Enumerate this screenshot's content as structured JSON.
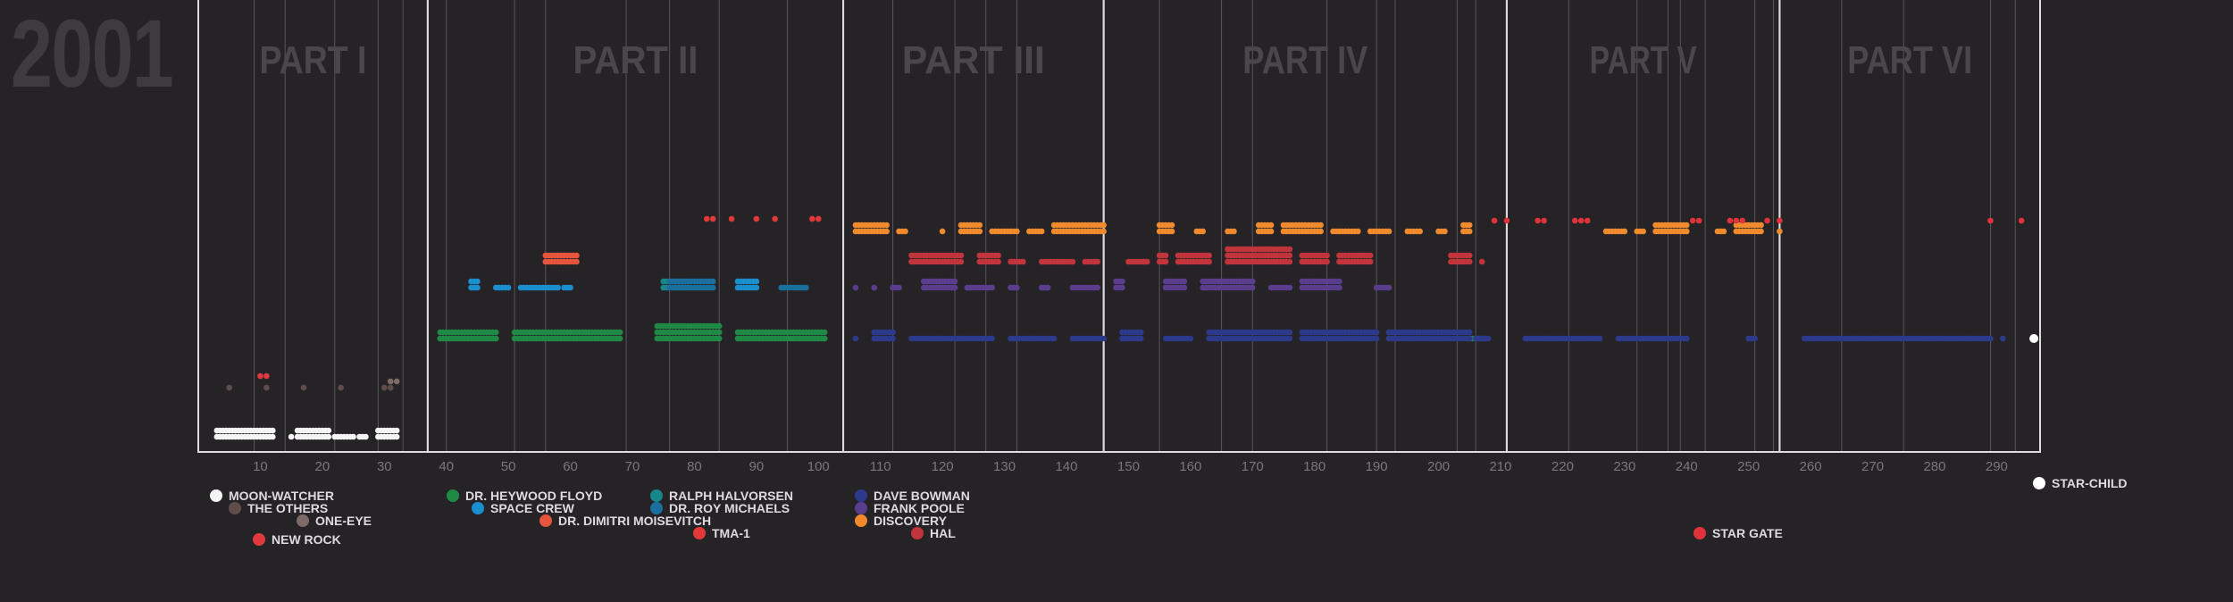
{
  "year_title": "2001",
  "parts": [
    {
      "label": "PART I",
      "start": 0,
      "end": 37
    },
    {
      "label": "PART II",
      "start": 37,
      "end": 104
    },
    {
      "label": "PART III",
      "start": 104,
      "end": 146
    },
    {
      "label": "PART IV",
      "start": 146,
      "end": 211
    },
    {
      "label": "PART V",
      "start": 211,
      "end": 255
    },
    {
      "label": "PART VI",
      "start": 255,
      "end": 297
    }
  ],
  "colors": {
    "moon_watcher": "#f4f4f4",
    "the_others": "#5e4d4a",
    "one_eye": "#7d6b68",
    "new_rock": "#e03a40",
    "heywood_floyd": "#1e8a45",
    "space_crew": "#1a8fd0",
    "dimitri_moisevitch": "#e6553e",
    "ralph_halvorsen": "#17878a",
    "roy_michaels": "#1a6f9e",
    "tma1": "#e23838",
    "dave_bowman": "#2d3a8c",
    "frank_poole": "#5b3d8e",
    "discovery": "#f08a2c",
    "hal": "#c2343c",
    "star_gate": "#e0323a",
    "star_child": "#ffffff"
  },
  "legend": [
    {
      "key": "moon_watcher",
      "label": "MOON-WATCHER"
    },
    {
      "key": "the_others",
      "label": "THE OTHERS"
    },
    {
      "key": "one_eye",
      "label": "ONE-EYE"
    },
    {
      "key": "new_rock",
      "label": "NEW ROCK"
    },
    {
      "key": "heywood_floyd",
      "label": "DR. HEYWOOD FLOYD"
    },
    {
      "key": "space_crew",
      "label": "SPACE CREW"
    },
    {
      "key": "dimitri_moisevitch",
      "label": "DR. DIMITRI MOISEVITCH"
    },
    {
      "key": "tma1",
      "label": "TMA-1"
    },
    {
      "key": "ralph_halvorsen",
      "label": "RALPH HALVORSEN"
    },
    {
      "key": "roy_michaels",
      "label": "DR. ROY MICHAELS"
    },
    {
      "key": "dave_bowman",
      "label": "DAVE BOWMAN"
    },
    {
      "key": "frank_poole",
      "label": "FRANK POOLE"
    },
    {
      "key": "discovery",
      "label": "DISCOVERY"
    },
    {
      "key": "hal",
      "label": "HAL"
    },
    {
      "key": "star_gate",
      "label": "STAR GATE"
    },
    {
      "key": "star_child",
      "label": "STAR-CHILD"
    }
  ],
  "chart_data": {
    "type": "scatter",
    "title": "2001",
    "x_ticks": [
      10,
      20,
      30,
      40,
      50,
      60,
      70,
      80,
      90,
      100,
      110,
      120,
      130,
      140,
      150,
      160,
      170,
      180,
      190,
      200,
      210,
      220,
      230,
      240,
      250,
      260,
      270,
      280,
      290
    ],
    "xlim": [
      0,
      297
    ],
    "chapter_boundaries": [
      0,
      9,
      14,
      22,
      29,
      33,
      37,
      40,
      51,
      56,
      69,
      76,
      84,
      95,
      104,
      112,
      122,
      127,
      132,
      146,
      155,
      165,
      170,
      182,
      190,
      193,
      203,
      206,
      211,
      221,
      232,
      237,
      239,
      243,
      251,
      254,
      265,
      275,
      289,
      293
    ],
    "series": [
      {
        "key": "moon_watcher",
        "name": "MOON-WATCHER",
        "segments": [
          [
            3,
            12,
            2
          ],
          [
            15,
            15,
            1
          ],
          [
            16,
            21,
            2
          ],
          [
            22,
            25,
            1
          ],
          [
            26,
            27,
            1
          ],
          [
            29,
            32,
            2
          ]
        ]
      },
      {
        "key": "the_others",
        "name": "THE OTHERS",
        "points": [
          5,
          11,
          17,
          23,
          30,
          31
        ]
      },
      {
        "key": "one_eye",
        "name": "ONE-EYE",
        "points": [
          31,
          32
        ]
      },
      {
        "key": "new_rock",
        "name": "NEW ROCK",
        "points": [
          10,
          11
        ]
      },
      {
        "key": "heywood_floyd",
        "name": "DR. HEYWOOD FLOYD",
        "segments": [
          [
            39,
            48,
            2
          ],
          [
            51,
            68,
            2
          ],
          [
            74,
            84,
            3
          ],
          [
            87,
            101,
            2
          ],
          [
            205,
            207,
            1
          ]
        ]
      },
      {
        "key": "space_crew",
        "name": "SPACE CREW",
        "segments": [
          [
            44,
            45,
            2
          ],
          [
            48,
            50,
            1
          ],
          [
            52,
            58,
            1
          ],
          [
            59,
            60,
            1
          ],
          [
            87,
            90,
            2
          ]
        ]
      },
      {
        "key": "dimitri_moisevitch",
        "name": "DR. DIMITRI MOISEVITCH",
        "segments": [
          [
            56,
            61,
            2
          ]
        ]
      },
      {
        "key": "ralph_halvorsen",
        "name": "RALPH HALVORSEN",
        "segments": [
          [
            75,
            79,
            2
          ]
        ]
      },
      {
        "key": "roy_michaels",
        "name": "DR. ROY MICHAELS",
        "segments": [
          [
            76,
            83,
            2
          ],
          [
            94,
            98,
            1
          ]
        ]
      },
      {
        "key": "tma1",
        "name": "TMA-1",
        "points": [
          82,
          83,
          86,
          90,
          93,
          99,
          100
        ]
      },
      {
        "key": "dave_bowman",
        "name": "DAVE BOWMAN",
        "segments": [
          [
            106,
            106,
            1
          ],
          [
            109,
            112,
            2
          ],
          [
            115,
            128,
            1
          ],
          [
            131,
            138,
            1
          ],
          [
            141,
            146,
            1
          ],
          [
            149,
            152,
            2
          ],
          [
            156,
            160,
            1
          ],
          [
            163,
            176,
            2
          ],
          [
            178,
            190,
            2
          ],
          [
            192,
            205,
            2
          ],
          [
            206,
            208,
            1
          ],
          [
            214,
            226,
            1
          ],
          [
            229,
            240,
            1
          ],
          [
            250,
            251,
            1
          ],
          [
            259,
            289,
            1
          ],
          [
            291,
            291,
            1
          ]
        ]
      },
      {
        "key": "frank_poole",
        "name": "FRANK POOLE",
        "segments": [
          [
            106,
            106,
            1
          ],
          [
            109,
            109,
            1
          ],
          [
            112,
            113,
            1
          ],
          [
            117,
            122,
            2
          ],
          [
            124,
            128,
            1
          ],
          [
            131,
            132,
            1
          ],
          [
            136,
            137,
            1
          ],
          [
            141,
            145,
            1
          ],
          [
            148,
            149,
            2
          ],
          [
            156,
            159,
            2
          ],
          [
            162,
            170,
            2
          ],
          [
            173,
            176,
            1
          ],
          [
            178,
            184,
            2
          ],
          [
            190,
            192,
            1
          ]
        ]
      },
      {
        "key": "discovery",
        "name": "DISCOVERY",
        "segments": [
          [
            106,
            111,
            2
          ],
          [
            113,
            114,
            1
          ],
          [
            120,
            120,
            1
          ],
          [
            123,
            126,
            2
          ],
          [
            128,
            132,
            1
          ],
          [
            134,
            136,
            1
          ],
          [
            138,
            146,
            2
          ],
          [
            155,
            157,
            2
          ],
          [
            161,
            162,
            1
          ],
          [
            166,
            167,
            1
          ],
          [
            171,
            173,
            2
          ],
          [
            175,
            181,
            2
          ],
          [
            183,
            187,
            1
          ],
          [
            189,
            192,
            1
          ],
          [
            195,
            197,
            1
          ],
          [
            200,
            201,
            1
          ],
          [
            204,
            205,
            2
          ],
          [
            227,
            230,
            1
          ],
          [
            232,
            233,
            1
          ],
          [
            235,
            240,
            2
          ],
          [
            245,
            246,
            1
          ],
          [
            248,
            252,
            2
          ],
          [
            255,
            255,
            1
          ]
        ]
      },
      {
        "key": "hal",
        "name": "HAL",
        "segments": [
          [
            115,
            123,
            2
          ],
          [
            126,
            129,
            2
          ],
          [
            131,
            133,
            1
          ],
          [
            136,
            141,
            1
          ],
          [
            143,
            145,
            1
          ],
          [
            150,
            153,
            1
          ],
          [
            155,
            156,
            2
          ],
          [
            158,
            163,
            2
          ],
          [
            166,
            176,
            3
          ],
          [
            178,
            182,
            2
          ],
          [
            184,
            189,
            2
          ],
          [
            202,
            205,
            2
          ],
          [
            207,
            207,
            1
          ]
        ]
      },
      {
        "key": "star_gate",
        "name": "STAR GATE",
        "points": [
          209,
          211,
          216,
          217,
          222,
          223,
          224,
          241,
          242,
          247,
          248,
          249,
          253,
          255,
          289,
          294
        ]
      },
      {
        "key": "star_child",
        "name": "STAR-CHILD",
        "points": [
          296
        ]
      }
    ]
  }
}
